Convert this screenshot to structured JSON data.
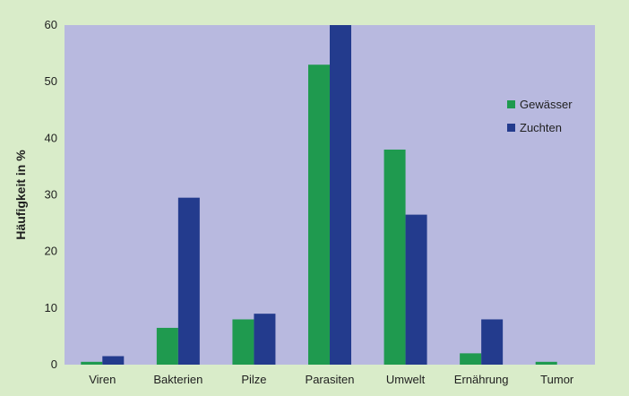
{
  "colors": {
    "page_background": "#d9ecc9",
    "plot_background": "#b8b9df",
    "gewaesser": "#1f9a4f",
    "zuchten": "#233b8d",
    "text": "#1f1f1f"
  },
  "chart_data": {
    "type": "bar",
    "title": "",
    "xlabel": "",
    "ylabel": "Häufigkeit in %",
    "ylim": [
      0,
      60
    ],
    "yticks": [
      "0",
      "10",
      "20",
      "30",
      "40",
      "50",
      "60"
    ],
    "grid": false,
    "legend_position": "top-right",
    "categories": [
      "Viren",
      "Bakterien",
      "Pilze",
      "Parasiten",
      "Umwelt",
      "Ernährung",
      "Tumor"
    ],
    "series": [
      {
        "name": "Gewässer",
        "color_key": "gewaesser",
        "values": [
          0.5,
          6.5,
          8,
          53,
          38,
          2,
          0.5
        ]
      },
      {
        "name": "Zuchten",
        "color_key": "zuchten",
        "values": [
          1.5,
          29.5,
          9,
          60,
          26.5,
          8,
          0
        ]
      }
    ]
  }
}
